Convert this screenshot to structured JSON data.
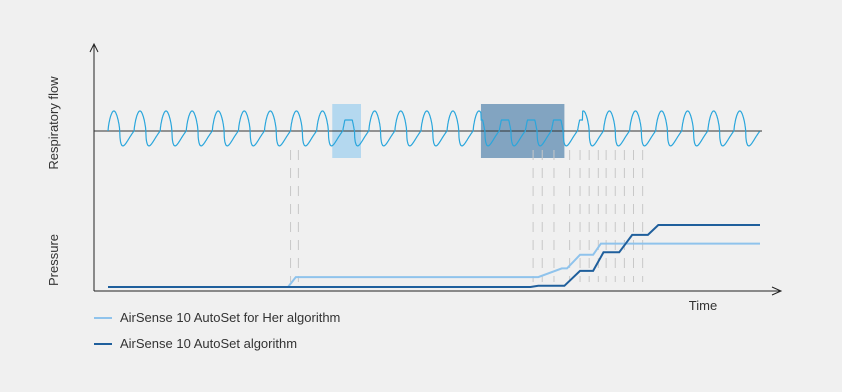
{
  "chart_data": {
    "type": "line",
    "title": "",
    "xlabel": "Time",
    "upper_panel": {
      "ylabel": "Respiratory flow",
      "series": [
        {
          "color": "#2aa6dc",
          "description": "flow waveform"
        }
      ],
      "highlights": [
        {
          "x_start": 8.6,
          "x_end": 9.7,
          "color": "#a9d4ef"
        },
        {
          "x_start": 14.3,
          "x_end": 17.5,
          "color": "#6f97b8"
        }
      ]
    },
    "lower_panel": {
      "ylabel": "Pressure",
      "series": [
        {
          "name": "AirSense 10 AutoSet for Her algorithm",
          "color": "#8fc3ec",
          "x": [
            0,
            6.9,
            7.2,
            16.5,
            17.4,
            17.6,
            18.1,
            18.6,
            18.9,
            19.7,
            25.0
          ],
          "y": [
            0,
            0,
            0.8,
            0.8,
            1.5,
            1.5,
            2.6,
            2.6,
            3.5,
            3.5,
            3.5
          ]
        },
        {
          "name": "AirSense 10 AutoSet algorithm",
          "color": "#1f5f9c",
          "x": [
            0,
            16.2,
            16.5,
            17.5,
            18.1,
            18.6,
            19.0,
            19.6,
            20.1,
            20.7,
            21.1,
            25.0
          ],
          "y": [
            0,
            0,
            0.1,
            0.1,
            1.3,
            1.3,
            2.8,
            2.8,
            4.2,
            4.2,
            5.0,
            5.0
          ]
        }
      ]
    },
    "event_markers_x": [
      7.0,
      7.3,
      16.3,
      16.65,
      17.1,
      17.7,
      18.1,
      18.45,
      18.8,
      19.1,
      19.45,
      19.8,
      20.15,
      20.5
    ],
    "xlim": [
      0,
      25
    ],
    "grid": false,
    "legend_placement": "bottom-left"
  },
  "legend": [
    {
      "label": "AirSense 10 AutoSet for Her algorithm",
      "color": "#8fc3ec"
    },
    {
      "label": "AirSense 10 AutoSet algorithm",
      "color": "#1f5f9c"
    }
  ]
}
